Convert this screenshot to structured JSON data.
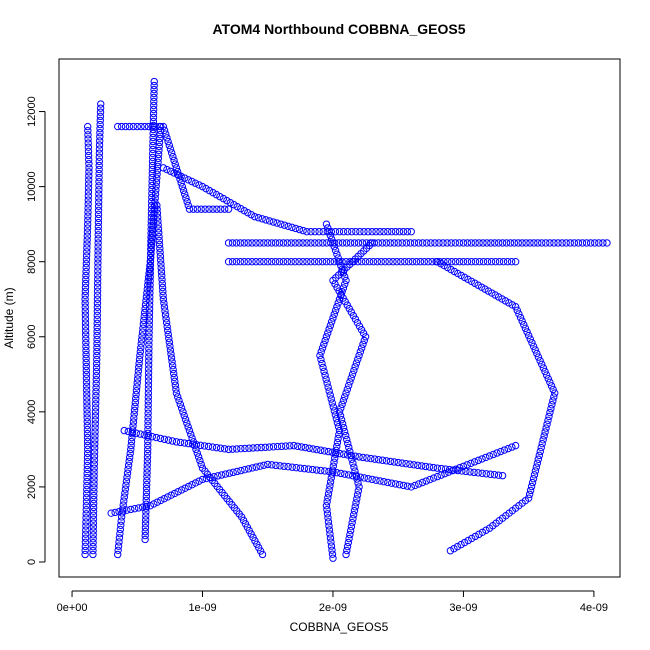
{
  "chart_data": {
    "type": "scatter",
    "title": "ATOM4 Northbound COBBNA_GEOS5",
    "xlabel": "COBBNA_GEOS5",
    "ylabel": "Altitude (m)",
    "xlim": [
      -1e-10,
      4.2e-09
    ],
    "ylim": [
      -400,
      13400
    ],
    "x_ticks": [
      0,
      1e-09,
      2e-09,
      3e-09,
      4e-09
    ],
    "x_tick_labels": [
      "0e+00",
      "1e-09",
      "2e-09",
      "3e-09",
      "4e-09"
    ],
    "y_ticks": [
      0,
      2000,
      4000,
      6000,
      8000,
      10000,
      12000
    ],
    "y_tick_labels": [
      "0",
      "2000",
      "4000",
      "6000",
      "8000",
      "10000",
      "12000"
    ],
    "grid": false,
    "marker": "open-circle",
    "color": "#0000ff",
    "series": [
      {
        "x": [
          1e-10,
          1.1e-10,
          1.2e-10,
          1.1e-10,
          1e-10,
          1.2e-10,
          1.3e-10,
          1.2e-10
        ],
        "y": [
          200,
          1500,
          3000,
          5000,
          7000,
          9000,
          10500,
          11600
        ]
      },
      {
        "x": [
          1.6e-10,
          1.7e-10,
          1.9e-10,
          2e-10,
          2.1e-10,
          2.2e-10
        ],
        "y": [
          200,
          2500,
          5500,
          8500,
          11000,
          12200
        ]
      },
      {
        "x": [
          3.5e-10,
          3.8e-10,
          4.5e-10,
          5.2e-10,
          6e-10,
          6.8e-10
        ],
        "y": [
          200,
          1200,
          3000,
          5500,
          8000,
          11600
        ]
      },
      {
        "x": [
          5.6e-10,
          5.8e-10,
          5.9e-10,
          6.1e-10,
          6.3e-10
        ],
        "y": [
          600,
          3000,
          6000,
          9500,
          12800
        ]
      },
      {
        "x": [
          1.46e-09,
          1.3e-09,
          1e-09,
          8e-10,
          7e-10,
          6.5e-10
        ],
        "y": [
          200,
          1200,
          2500,
          4500,
          7000,
          9500
        ]
      },
      {
        "x": [
          2e-09,
          1.95e-09,
          2.05e-09,
          1.9e-09,
          2.1e-09,
          1.95e-09
        ],
        "y": [
          100,
          1500,
          3500,
          5500,
          7500,
          9000
        ]
      },
      {
        "x": [
          2.1e-09,
          2.2e-09,
          2.05e-09,
          2.25e-09,
          2e-09,
          2.3e-09
        ],
        "y": [
          200,
          2000,
          4000,
          6000,
          7500,
          8500
        ]
      },
      {
        "x": [
          2.9e-09,
          3.2e-09,
          3.5e-09,
          3.7e-09,
          3.4e-09,
          2.8e-09
        ],
        "y": [
          300,
          900,
          1700,
          4500,
          6800,
          8000
        ]
      },
      {
        "x": [
          1.2e-09,
          1.8e-09,
          2.5e-09,
          3e-09,
          3.6e-09,
          4.1e-09
        ],
        "y": [
          8500,
          8500,
          8500,
          8500,
          8500,
          8500
        ]
      },
      {
        "x": [
          1.2e-09,
          1.8e-09,
          2.4e-09,
          3e-09,
          3.4e-09
        ],
        "y": [
          8000,
          8000,
          8000,
          8000,
          8000
        ]
      },
      {
        "x": [
          3.5e-10,
          5e-10,
          7e-10,
          9e-10,
          1.2e-09
        ],
        "y": [
          11600,
          11600,
          11600,
          9400,
          9400
        ]
      },
      {
        "x": [
          7e-10,
          1e-09,
          1.4e-09,
          1.8e-09,
          2.3e-09,
          2.6e-09
        ],
        "y": [
          10500,
          10000,
          9200,
          8800,
          8800,
          8800
        ]
      },
      {
        "x": [
          3e-10,
          6e-10,
          1e-09,
          1.5e-09,
          2e-09,
          2.6e-09,
          3.4e-09
        ],
        "y": [
          1300,
          1500,
          2200,
          2600,
          2400,
          2000,
          3100
        ]
      },
      {
        "x": [
          4e-10,
          8e-10,
          1.2e-09,
          1.7e-09,
          2.2e-09,
          2.8e-09,
          3.3e-09
        ],
        "y": [
          3500,
          3200,
          3000,
          3100,
          2800,
          2500,
          2300
        ]
      }
    ]
  }
}
